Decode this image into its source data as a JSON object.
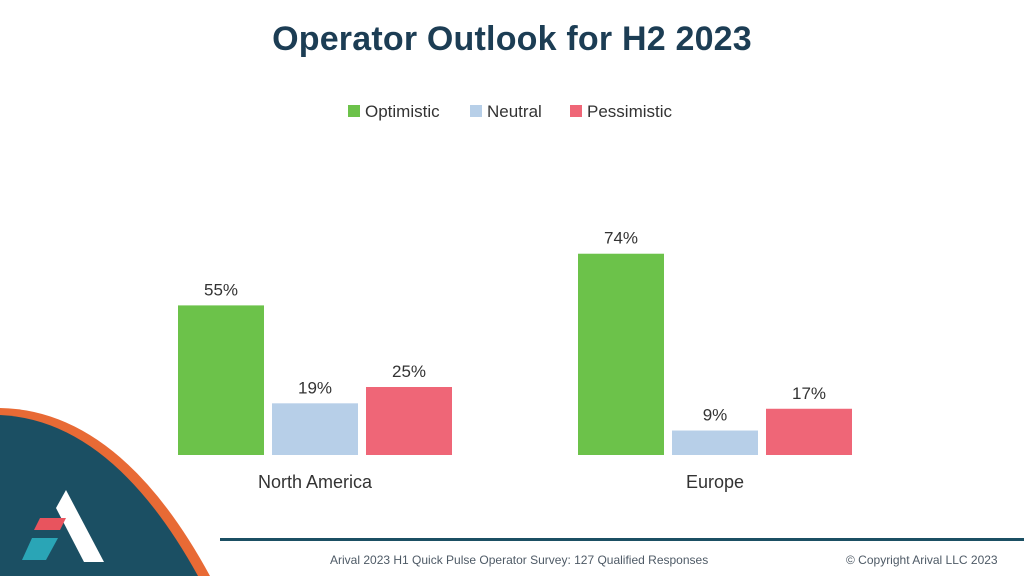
{
  "slide": {
    "title": "Operator Outlook for H2 2023",
    "footer_source": "Arival 2023 H1 Quick Pulse Operator Survey: 127 Qualified Responses",
    "footer_copyright": "© Copyright Arival LLC 2023"
  },
  "chart_data": {
    "type": "bar",
    "title": "Operator Outlook for H2 2023",
    "xlabel": "",
    "ylabel": "",
    "categories": [
      "North America",
      "Europe"
    ],
    "series": [
      {
        "name": "Optimistic",
        "values": [
          55,
          74
        ],
        "labels": [
          "55%",
          "74%"
        ],
        "color": "#6cc24a"
      },
      {
        "name": "Neutral",
        "values": [
          19,
          9
        ],
        "labels": [
          "19%",
          "9%"
        ],
        "color": "#b7cfe8"
      },
      {
        "name": "Pessimistic",
        "values": [
          25,
          17
        ],
        "labels": [
          "25%",
          "17%"
        ],
        "color": "#ef6677"
      }
    ],
    "ylim": [
      0,
      100
    ],
    "grid": false,
    "legend_position": "top-center",
    "value_format": "percent"
  },
  "colors": {
    "title": "#1c3d54",
    "text": "#333333",
    "footer_text": "#4e5a66",
    "logo_teal": "#1b4f63",
    "logo_orange": "#e86a35",
    "logo_red": "#e8545e",
    "logo_cyan": "#2aa5b6",
    "footer_line": "#1b4f63"
  }
}
